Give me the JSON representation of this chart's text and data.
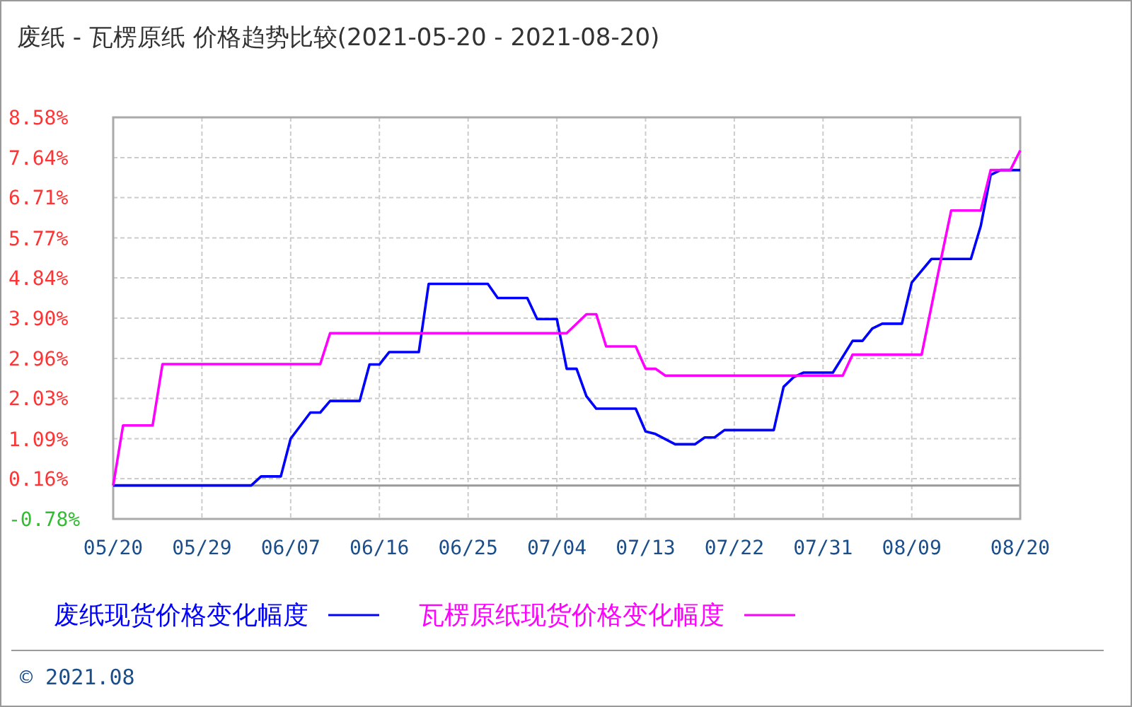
{
  "chart_data": {
    "type": "line",
    "title": "废纸 - 瓦楞原纸 价格趋势比较(2021-05-20 - 2021-08-20)",
    "xlim": [
      "2021-05-20",
      "2021-08-20"
    ],
    "xticks": [
      {
        "value": "2021-05-20",
        "label": "05/20"
      },
      {
        "value": "2021-05-29",
        "label": "05/29"
      },
      {
        "value": "2021-06-07",
        "label": "06/07"
      },
      {
        "value": "2021-06-16",
        "label": "06/16"
      },
      {
        "value": "2021-06-25",
        "label": "06/25"
      },
      {
        "value": "2021-07-04",
        "label": "07/04"
      },
      {
        "value": "2021-07-13",
        "label": "07/13"
      },
      {
        "value": "2021-07-22",
        "label": "07/22"
      },
      {
        "value": "2021-07-31",
        "label": "07/31"
      },
      {
        "value": "2021-08-09",
        "label": "08/09"
      },
      {
        "value": "2021-08-20",
        "label": "08/20"
      }
    ],
    "ylim": [
      -0.78,
      8.58
    ],
    "yticks": [
      {
        "value": -0.78,
        "label": "-0.78%"
      },
      {
        "value": 0.16,
        "label": "0.16%"
      },
      {
        "value": 1.09,
        "label": "1.09%"
      },
      {
        "value": 2.03,
        "label": "2.03%"
      },
      {
        "value": 2.96,
        "label": "2.96%"
      },
      {
        "value": 3.9,
        "label": "3.90%"
      },
      {
        "value": 4.84,
        "label": "4.84%"
      },
      {
        "value": 5.77,
        "label": "5.77%"
      },
      {
        "value": 6.71,
        "label": "6.71%"
      },
      {
        "value": 7.64,
        "label": "7.64%"
      },
      {
        "value": 8.58,
        "label": "8.58%"
      }
    ],
    "grid": true,
    "legend": "bottom",
    "line_style": "solid",
    "marker": "none",
    "ref_lines": [
      {
        "axis": "y",
        "value": 0,
        "color": "#999999"
      }
    ],
    "series": [
      {
        "name": "废纸现货价格变化幅度",
        "color": "#0000ff",
        "x": [
          "2021-05-20",
          "2021-06-03",
          "2021-06-04",
          "2021-06-06",
          "2021-06-07",
          "2021-06-09",
          "2021-06-10",
          "2021-06-11",
          "2021-06-14",
          "2021-06-15",
          "2021-06-16",
          "2021-06-17",
          "2021-06-20",
          "2021-06-21",
          "2021-06-27",
          "2021-06-28",
          "2021-07-01",
          "2021-07-02",
          "2021-07-04",
          "2021-07-05",
          "2021-07-06",
          "2021-07-07",
          "2021-07-08",
          "2021-07-12",
          "2021-07-13",
          "2021-07-14",
          "2021-07-16",
          "2021-07-18",
          "2021-07-19",
          "2021-07-20",
          "2021-07-21",
          "2021-07-26",
          "2021-07-27",
          "2021-07-28",
          "2021-07-29",
          "2021-08-01",
          "2021-08-03",
          "2021-08-04",
          "2021-08-05",
          "2021-08-06",
          "2021-08-08",
          "2021-08-09",
          "2021-08-11",
          "2021-08-15",
          "2021-08-16",
          "2021-08-17",
          "2021-08-18",
          "2021-08-20"
        ],
        "values": [
          0,
          0,
          0.21,
          0.21,
          1.09,
          1.7,
          1.7,
          1.97,
          1.97,
          2.82,
          2.82,
          3.11,
          3.11,
          4.7,
          4.7,
          4.37,
          4.37,
          3.88,
          3.88,
          2.72,
          2.72,
          2.08,
          1.79,
          1.79,
          1.26,
          1.2,
          0.96,
          0.96,
          1.12,
          1.12,
          1.29,
          1.29,
          2.3,
          2.52,
          2.63,
          2.63,
          3.37,
          3.37,
          3.66,
          3.77,
          3.77,
          4.73,
          5.28,
          5.28,
          6.05,
          7.24,
          7.35,
          7.35
        ]
      },
      {
        "name": "瓦楞原纸现货价格变化幅度",
        "color": "#ff00ff",
        "x": [
          "2021-05-20",
          "2021-05-21",
          "2021-05-24",
          "2021-05-25",
          "2021-06-10",
          "2021-06-11",
          "2021-07-05",
          "2021-07-07",
          "2021-07-08",
          "2021-07-09",
          "2021-07-12",
          "2021-07-13",
          "2021-07-14",
          "2021-07-15",
          "2021-08-02",
          "2021-08-03",
          "2021-08-10",
          "2021-08-12",
          "2021-08-13",
          "2021-08-16",
          "2021-08-17",
          "2021-08-19",
          "2021-08-20"
        ],
        "values": [
          0,
          1.4,
          1.4,
          2.83,
          2.83,
          3.55,
          3.55,
          3.99,
          3.99,
          3.24,
          3.24,
          2.72,
          2.72,
          2.56,
          2.56,
          3.05,
          3.05,
          5.31,
          6.41,
          6.41,
          7.35,
          7.35,
          7.81
        ]
      }
    ],
    "annotations": [
      "© 2021.08"
    ]
  }
}
